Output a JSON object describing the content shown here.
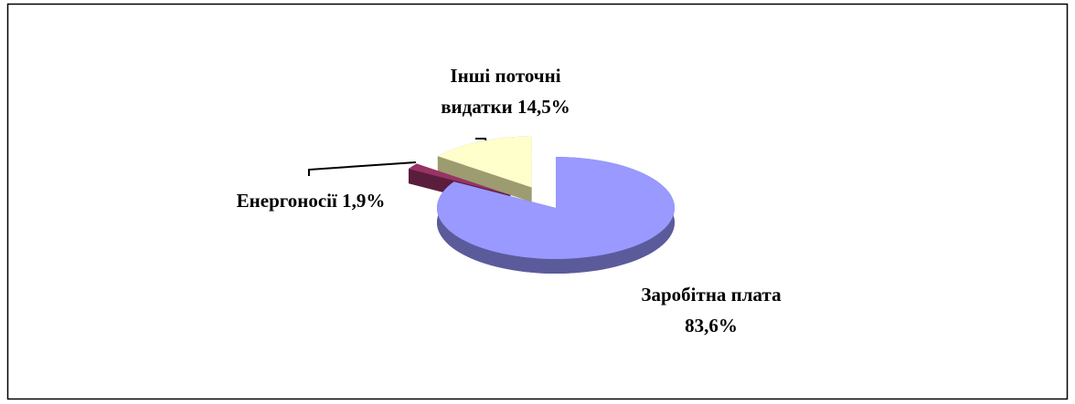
{
  "chart_data": {
    "type": "pie",
    "three_d": true,
    "categories": [
      "Заробітна плата",
      "Енергоносії",
      "Інші поточні видатки"
    ],
    "values": [
      83.6,
      1.9,
      14.5
    ],
    "value_labels": [
      "83,6%",
      "1,9%",
      "14,5%"
    ],
    "colors": [
      "#9999ff",
      "#993366",
      "#ffffcc"
    ],
    "side_colors": [
      "#5b5b9c",
      "#5a1e3c",
      "#9c9c70"
    ],
    "exploded": [
      false,
      true,
      true
    ]
  }
}
